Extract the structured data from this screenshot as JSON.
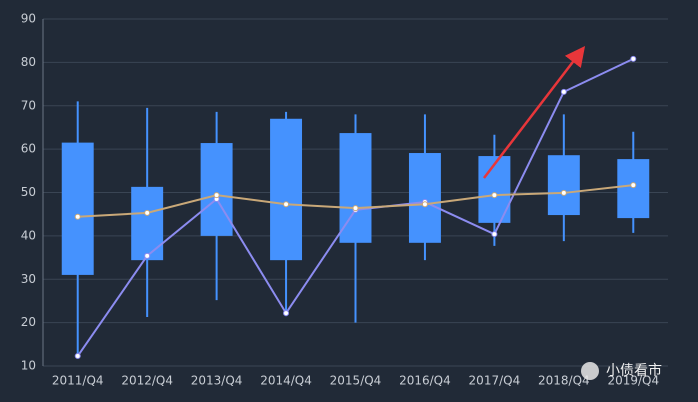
{
  "chart_data": {
    "type": "boxplot",
    "categories": [
      "2011/Q4",
      "2012/Q4",
      "2013/Q4",
      "2014/Q4",
      "2015/Q4",
      "2016/Q4",
      "2017/Q4",
      "2018/Q4",
      "2019/Q4"
    ],
    "boxes": {
      "color": "#4592fe",
      "values": [
        [
          12,
          31,
          61.5,
          71
        ],
        [
          21.3,
          34.4,
          51.3,
          69.5
        ],
        [
          25.2,
          40,
          61.4,
          68.6
        ],
        [
          21.5,
          34.4,
          67,
          68.6
        ],
        [
          20,
          38.4,
          63.7,
          68
        ],
        [
          34.4,
          38.4,
          59.1,
          68
        ],
        [
          37.7,
          43,
          58.4,
          63.3
        ],
        [
          38.8,
          44.8,
          58.6,
          68
        ],
        [
          40.7,
          44.1,
          57.7,
          64
        ]
      ]
    },
    "lines": [
      {
        "color": "#8c8cf0",
        "values": [
          12.3,
          35.4,
          48.5,
          22.2,
          46,
          47.8,
          40.4,
          73.2,
          80.8
        ]
      },
      {
        "color": "#c9a878",
        "values": [
          44.4,
          45.3,
          49.4,
          47.3,
          46.4,
          47.3,
          49.4,
          49.9,
          51.7
        ]
      }
    ],
    "ylim": [
      10,
      90
    ],
    "yticks": [
      10,
      20,
      30,
      40,
      50,
      60,
      70,
      80,
      90
    ],
    "grid": true,
    "watermark": "小债看市"
  }
}
